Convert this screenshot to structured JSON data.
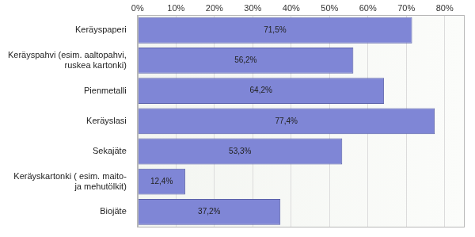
{
  "chart_data": {
    "type": "bar",
    "orientation": "horizontal",
    "categories": [
      "Keräyspaperi",
      "Keräyspahvi (esim. aaltopahvi, ruskea kartonki)",
      "Pienmetalli",
      "Keräyslasi",
      "Sekajäte",
      "Keräyskartonki ( esim. maito- ja mehutölkit)",
      "Biojäte"
    ],
    "values": [
      71.5,
      56.2,
      64.2,
      77.4,
      53.3,
      12.4,
      37.2
    ],
    "value_labels": [
      "71,5%",
      "56,2%",
      "64,2%",
      "77,4%",
      "53,3%",
      "12,4%",
      "37,2%"
    ],
    "color": "#7f86d6",
    "xlim": [
      0,
      85
    ],
    "xticks": [
      {
        "value": 0,
        "label": "0%"
      },
      {
        "value": 10,
        "label": "10%"
      },
      {
        "value": 20,
        "label": "20%"
      },
      {
        "value": 30,
        "label": "30%"
      },
      {
        "value": 40,
        "label": "40%"
      },
      {
        "value": 50,
        "label": "50%"
      },
      {
        "value": 60,
        "label": "60%"
      },
      {
        "value": 70,
        "label": "70%"
      },
      {
        "value": 80,
        "label": "80%"
      }
    ],
    "grid": true,
    "data_labels": true
  }
}
